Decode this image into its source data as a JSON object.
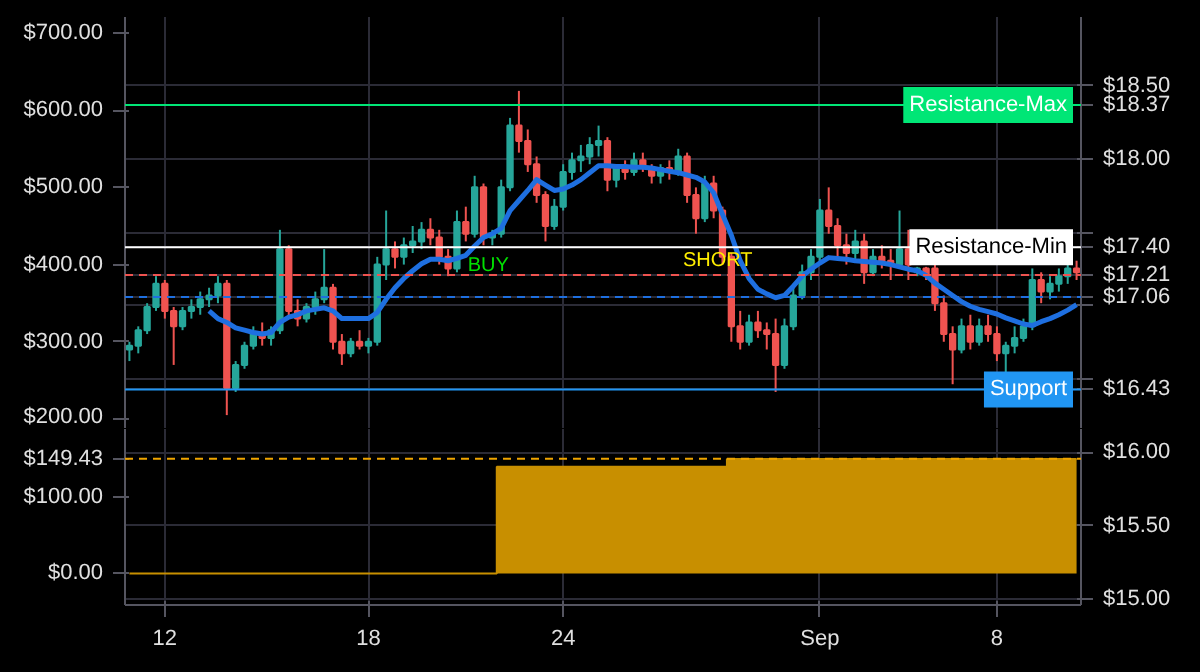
{
  "chart_data": [
    {
      "type": "candlestick",
      "categories": [
        null,
        null,
        null,
        null,
        null,
        null,
        null,
        null,
        null,
        null,
        null,
        null,
        null,
        null,
        null,
        null,
        null,
        null,
        null,
        null,
        null,
        null,
        null,
        null,
        null,
        null,
        null,
        null,
        null,
        null,
        null,
        null,
        null,
        null,
        null,
        null,
        null,
        null,
        null,
        null,
        null,
        null,
        null,
        null,
        null,
        null,
        null,
        null,
        null,
        null,
        null,
        null,
        null,
        null,
        null,
        null,
        null,
        null,
        null,
        null,
        null,
        null,
        null,
        null,
        null,
        null,
        null,
        null,
        null,
        null,
        null,
        null,
        null,
        null,
        null,
        null,
        null,
        null,
        null,
        null,
        null,
        null,
        null,
        null,
        null,
        null,
        null,
        null,
        null,
        null,
        null,
        null,
        null,
        null,
        null,
        null,
        null,
        null,
        null,
        null,
        null,
        null,
        null,
        null,
        null,
        null,
        null,
        null
      ],
      "ohlc": [
        [
          290,
          300,
          275,
          295
        ],
        [
          295,
          320,
          285,
          315
        ],
        [
          315,
          350,
          310,
          345
        ],
        [
          345,
          385,
          340,
          375
        ],
        [
          375,
          380,
          330,
          340
        ],
        [
          340,
          345,
          270,
          320
        ],
        [
          320,
          345,
          315,
          340
        ],
        [
          340,
          355,
          330,
          345
        ],
        [
          345,
          365,
          335,
          355
        ],
        [
          355,
          370,
          345,
          360
        ],
        [
          360,
          385,
          350,
          375
        ],
        [
          375,
          380,
          205,
          240
        ],
        [
          240,
          275,
          235,
          270
        ],
        [
          270,
          300,
          265,
          295
        ],
        [
          295,
          320,
          290,
          310
        ],
        [
          310,
          325,
          295,
          305
        ],
        [
          305,
          320,
          295,
          315
        ],
        [
          315,
          445,
          310,
          420
        ],
        [
          420,
          425,
          330,
          340
        ],
        [
          340,
          355,
          320,
          330
        ],
        [
          330,
          350,
          325,
          345
        ],
        [
          345,
          365,
          335,
          355
        ],
        [
          355,
          420,
          350,
          370
        ],
        [
          370,
          375,
          290,
          300
        ],
        [
          300,
          310,
          270,
          285
        ],
        [
          285,
          305,
          280,
          300
        ],
        [
          300,
          315,
          290,
          295
        ],
        [
          295,
          305,
          285,
          300
        ],
        [
          300,
          410,
          295,
          400
        ],
        [
          400,
          470,
          380,
          420
        ],
        [
          420,
          430,
          395,
          410
        ],
        [
          410,
          435,
          400,
          425
        ],
        [
          425,
          450,
          415,
          430
        ],
        [
          430,
          455,
          420,
          445
        ],
        [
          445,
          460,
          425,
          435
        ],
        [
          435,
          445,
          400,
          410
        ],
        [
          410,
          420,
          385,
          395
        ],
        [
          395,
          470,
          390,
          455
        ],
        [
          455,
          475,
          430,
          440
        ],
        [
          440,
          515,
          435,
          500
        ],
        [
          500,
          505,
          425,
          435
        ],
        [
          435,
          445,
          425,
          440
        ],
        [
          440,
          510,
          435,
          500
        ],
        [
          500,
          590,
          495,
          580
        ],
        [
          580,
          625,
          545,
          560
        ],
        [
          560,
          575,
          520,
          530
        ],
        [
          530,
          540,
          480,
          490
        ],
        [
          490,
          495,
          430,
          450
        ],
        [
          450,
          485,
          445,
          475
        ],
        [
          475,
          530,
          470,
          520
        ],
        [
          520,
          545,
          510,
          535
        ],
        [
          535,
          555,
          520,
          540
        ],
        [
          540,
          565,
          530,
          555
        ],
        [
          555,
          580,
          540,
          560
        ],
        [
          560,
          565,
          495,
          510
        ],
        [
          510,
          530,
          500,
          525
        ],
        [
          525,
          535,
          510,
          520
        ],
        [
          520,
          545,
          515,
          535
        ],
        [
          535,
          545,
          520,
          525
        ],
        [
          525,
          530,
          505,
          515
        ],
        [
          515,
          530,
          505,
          525
        ],
        [
          525,
          535,
          510,
          520
        ],
        [
          520,
          550,
          515,
          540
        ],
        [
          540,
          545,
          480,
          490
        ],
        [
          490,
          500,
          440,
          460
        ],
        [
          460,
          515,
          455,
          505
        ],
        [
          505,
          515,
          460,
          470
        ],
        [
          470,
          475,
          400,
          410
        ],
        [
          410,
          415,
          300,
          320
        ],
        [
          320,
          340,
          290,
          300
        ],
        [
          300,
          335,
          295,
          325
        ],
        [
          325,
          340,
          305,
          315
        ],
        [
          315,
          325,
          290,
          310
        ],
        [
          310,
          330,
          235,
          270
        ],
        [
          270,
          330,
          265,
          320
        ],
        [
          320,
          370,
          315,
          360
        ],
        [
          360,
          400,
          355,
          390
        ],
        [
          390,
          420,
          380,
          410
        ],
        [
          410,
          485,
          400,
          470
        ],
        [
          470,
          500,
          440,
          450
        ],
        [
          450,
          460,
          410,
          425
        ],
        [
          425,
          440,
          400,
          415
        ],
        [
          415,
          445,
          405,
          430
        ],
        [
          430,
          440,
          375,
          390
        ],
        [
          390,
          420,
          385,
          410
        ],
        [
          410,
          425,
          395,
          405
        ],
        [
          405,
          420,
          380,
          400
        ],
        [
          400,
          470,
          395,
          420
        ],
        [
          420,
          445,
          380,
          400
        ],
        [
          390,
          397,
          385,
          395
        ],
        [
          395,
          397,
          380,
          388
        ],
        [
          395,
          400,
          340,
          350
        ],
        [
          350,
          360,
          300,
          310
        ],
        [
          310,
          320,
          245,
          290
        ],
        [
          290,
          330,
          285,
          320
        ],
        [
          320,
          335,
          290,
          300
        ],
        [
          300,
          330,
          295,
          320
        ],
        [
          320,
          335,
          300,
          310
        ],
        [
          310,
          320,
          275,
          285
        ],
        [
          285,
          300,
          258,
          295
        ],
        [
          295,
          320,
          285,
          305
        ],
        [
          305,
          330,
          300,
          320
        ],
        [
          320,
          395,
          315,
          380
        ],
        [
          380,
          390,
          350,
          365
        ],
        [
          365,
          385,
          355,
          375
        ],
        [
          375,
          395,
          365,
          385
        ],
        [
          385,
          400,
          375,
          395
        ],
        [
          395,
          405,
          380,
          390
        ]
      ],
      "series": [
        {
          "type": "line",
          "color": "#1e6fe0",
          "values": [
            null,
            null,
            null,
            null,
            null,
            null,
            null,
            null,
            null,
            340,
            330,
            325,
            318,
            315,
            312,
            310,
            312,
            325,
            332,
            335,
            340,
            342,
            344,
            340,
            330,
            330,
            330,
            330,
            338,
            355,
            370,
            382,
            392,
            401,
            407,
            407,
            405,
            408,
            412,
            424,
            435,
            440,
            447,
            470,
            483,
            496,
            510,
            503,
            496,
            498,
            503,
            510,
            519,
            528,
            528,
            527,
            527,
            526,
            526,
            525,
            523,
            521,
            519,
            516,
            513,
            507,
            493,
            465,
            438,
            405,
            382,
            368,
            362,
            357,
            360,
            372,
            385,
            394,
            402,
            409,
            408,
            407,
            405,
            404,
            403,
            402,
            400,
            397,
            394,
            392,
            386,
            376,
            368,
            360,
            352,
            346,
            342,
            339,
            336,
            331,
            327,
            323,
            321,
            326,
            330,
            335,
            341,
            348
          ]
        }
      ],
      "ylim": [
        187,
        720.7
      ],
      "yticks": [
        {
          "value": 200,
          "label": "$200.00"
        },
        {
          "value": 300,
          "label": "$300.00"
        },
        {
          "value": 400,
          "label": "$400.00"
        },
        {
          "value": 500,
          "label": "$500.00"
        },
        {
          "value": 600,
          "label": "$600.00"
        },
        {
          "value": 700,
          "label": "$700.00"
        }
      ],
      "y2lim": [
        16.16,
        18.97
      ],
      "y2ticks": [
        {
          "value": 18.5,
          "label": "$18.50"
        },
        {
          "value": 18.37,
          "label": "$18.37"
        },
        {
          "value": 18.0,
          "label": "$18.00"
        },
        {
          "value": 17.5,
          "label": null
        },
        {
          "value": 17.4,
          "label": "$17.40"
        },
        {
          "value": 17.21,
          "label": "$17.21"
        },
        {
          "value": 17.06,
          "label": "$17.06"
        },
        {
          "value": 17.0,
          "label": null
        },
        {
          "value": 16.5,
          "label": null
        },
        {
          "value": 16.43,
          "label": "$16.43"
        }
      ],
      "ref_lines": [
        {
          "axis": "y2",
          "value": 18.37,
          "label": "Resistance-Max",
          "color": "#00e676"
        },
        {
          "axis": "y2",
          "value": 17.4,
          "label": "Resistance-Min",
          "color": "#ffffff"
        },
        {
          "axis": "y2",
          "value": 17.21,
          "color": "#ef5350",
          "line_style": "dashed"
        },
        {
          "axis": "y2",
          "value": 17.06,
          "color": "#1e6fe0",
          "line_style": "dashed"
        },
        {
          "axis": "y2",
          "value": 16.43,
          "label": "Support",
          "color": "#2196f3"
        }
      ],
      "annotations": [
        "BUY",
        "SHORT"
      ],
      "grid": true,
      "tick_labels": "y"
    },
    {
      "type": "area",
      "categories": [
        null,
        null,
        null,
        null,
        "12",
        null,
        null,
        null,
        null,
        null,
        null,
        null,
        null,
        null,
        null,
        null,
        null,
        null,
        null,
        null,
        null,
        null,
        null,
        null,
        null,
        null,
        null,
        "18",
        null,
        null,
        null,
        null,
        null,
        null,
        null,
        null,
        null,
        null,
        null,
        null,
        null,
        null,
        null,
        null,
        null,
        null,
        null,
        null,
        null,
        "24",
        null,
        null,
        null,
        null,
        null,
        null,
        null,
        null,
        null,
        null,
        null,
        null,
        null,
        null,
        null,
        null,
        null,
        null,
        null,
        null,
        null,
        null,
        null,
        null,
        null,
        null,
        null,
        null,
        "Sep",
        null,
        null,
        null,
        null,
        null,
        null,
        null,
        null,
        null,
        null,
        null,
        null,
        null,
        null,
        null,
        null,
        null,
        null,
        null,
        "8",
        null,
        null,
        null,
        null,
        null,
        null,
        null,
        null,
        null
      ],
      "values": [
        0,
        0,
        0,
        0,
        0,
        0,
        0,
        0,
        0,
        0,
        0,
        0,
        0,
        0,
        0,
        0,
        0,
        0,
        0,
        0,
        0,
        0,
        0,
        0,
        0,
        0,
        0,
        0,
        0,
        0,
        0,
        0,
        0,
        0,
        0,
        0,
        0,
        0,
        0,
        0,
        0,
        0,
        139,
        139,
        139,
        139,
        139,
        139,
        139,
        139,
        139,
        139,
        139,
        139,
        139,
        139,
        139,
        139,
        139,
        139,
        139,
        139,
        139,
        139,
        139,
        139,
        139,
        139,
        149,
        149,
        149,
        149,
        149,
        149,
        149,
        149,
        149,
        149,
        149,
        149,
        149,
        149,
        149,
        149,
        149,
        149,
        149,
        149,
        149,
        149,
        149,
        149,
        149,
        149,
        149,
        149,
        149,
        149,
        149,
        149,
        149,
        149,
        149,
        149,
        149,
        149,
        149,
        149
      ],
      "color": "#c88f00",
      "ylim": [
        -41,
        188
      ],
      "yticks": [
        {
          "value": 0,
          "label": "$0.00"
        },
        {
          "value": 100,
          "label": "$100.00"
        },
        {
          "value": 149.43,
          "label": "$149.43"
        }
      ],
      "y2lim": [
        14.96,
        16.16
      ],
      "y2ticks": [
        {
          "value": 15.0,
          "label": "$15.00"
        },
        {
          "value": 15.5,
          "label": "$15.50"
        },
        {
          "value": 16.0,
          "label": "$16.00"
        }
      ],
      "ref_lines": [
        {
          "axis": "y",
          "value": 149.43,
          "color": "#f0a500",
          "line_style": "dashed"
        }
      ],
      "grid": true
    }
  ]
}
